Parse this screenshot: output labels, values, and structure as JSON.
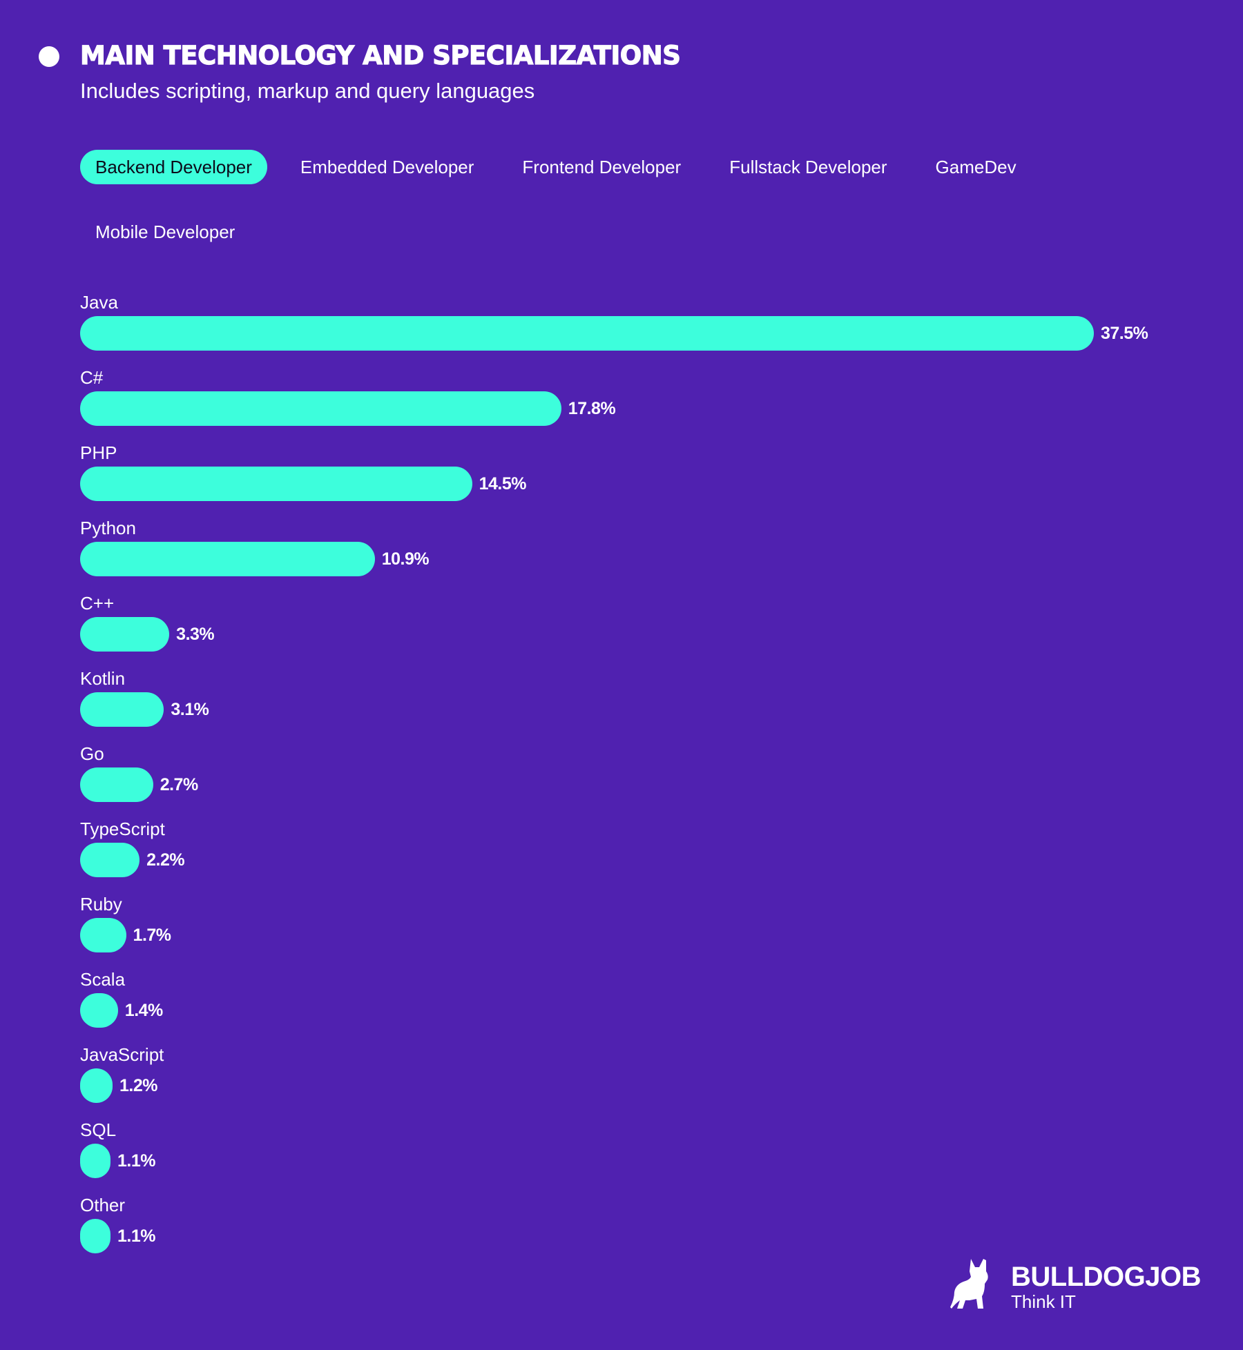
{
  "header": {
    "title": "MAIN TECHNOLOGY AND SPECIALIZATIONS",
    "subtitle": "Includes scripting, markup and query languages",
    "bullet_icon": "circle-bullet"
  },
  "tabs": [
    {
      "label": "Backend Developer",
      "active": true
    },
    {
      "label": "Embedded Developer",
      "active": false
    },
    {
      "label": "Frontend Developer",
      "active": false
    },
    {
      "label": "Fullstack Developer",
      "active": false
    },
    {
      "label": "GameDev",
      "active": false
    },
    {
      "label": "Mobile Developer",
      "active": false
    }
  ],
  "colors": {
    "background": "#5021b0",
    "bar": "#3dfedc",
    "text": "#ffffff",
    "active_tab_text": "#0b0b1a"
  },
  "chart_data": {
    "type": "bar",
    "orientation": "horizontal",
    "title": "MAIN TECHNOLOGY AND SPECIALIZATIONS",
    "subtitle": "Includes scripting, markup and query languages",
    "filter": "Backend Developer",
    "categories": [
      "Java",
      "C#",
      "PHP",
      "Python",
      "C++",
      "Kotlin",
      "Go",
      "TypeScript",
      "Ruby",
      "Scala",
      "JavaScript",
      "SQL",
      "Other"
    ],
    "values": [
      37.5,
      17.8,
      14.5,
      10.9,
      3.3,
      3.1,
      2.7,
      2.2,
      1.7,
      1.4,
      1.2,
      1.1,
      1.1
    ],
    "value_labels": [
      "37.5%",
      "17.8%",
      "14.5%",
      "10.9%",
      "3.3%",
      "3.1%",
      "2.7%",
      "2.2%",
      "1.7%",
      "1.4%",
      "1.2%",
      "1.1%",
      "1.1%"
    ],
    "unit": "%",
    "xlabel": "",
    "ylabel": "",
    "grid": false,
    "legend": null
  },
  "logo": {
    "name": "BULLDOGJOB",
    "tagline": "Think IT",
    "icon": "bulldog-icon"
  }
}
